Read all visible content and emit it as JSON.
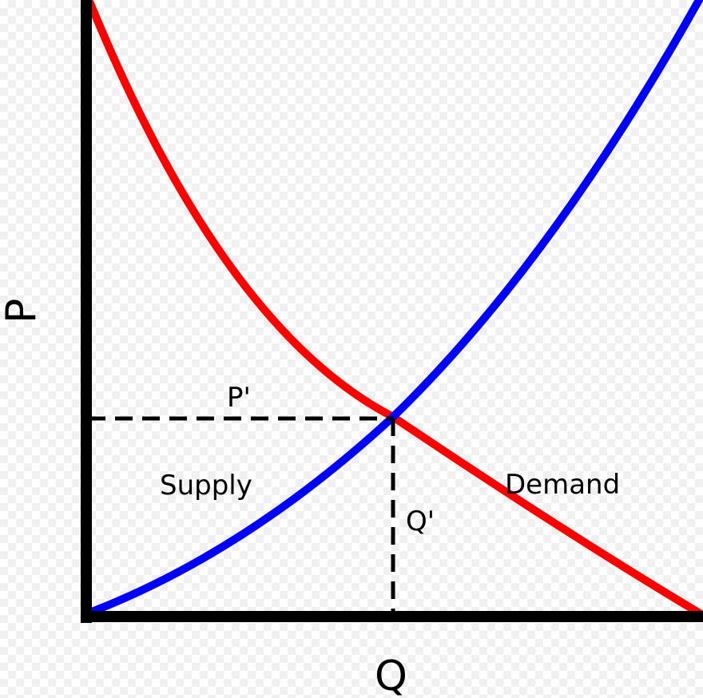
{
  "diagram": {
    "axis_x_label": "Q",
    "axis_y_label": "P",
    "equilibrium_price_label": "P'",
    "equilibrium_quantity_label": "Q'",
    "supply_label": "Supply",
    "demand_label": "Demand",
    "colors": {
      "supply": "#0000ff",
      "demand": "#ff0000",
      "axes": "#000000",
      "guides": "#000000"
    }
  }
}
